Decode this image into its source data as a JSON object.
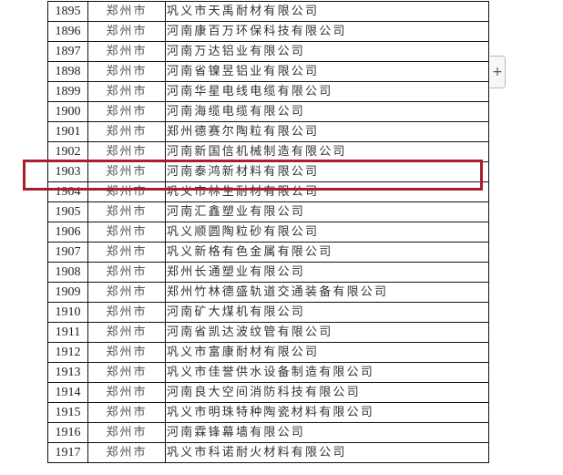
{
  "table": {
    "rows": [
      {
        "no": "1895",
        "city": "郑州市",
        "company": "巩义市天禹耐材有限公司"
      },
      {
        "no": "1896",
        "city": "郑州市",
        "company": "河南康百万环保科技有限公司"
      },
      {
        "no": "1897",
        "city": "郑州市",
        "company": "河南万达铝业有限公司"
      },
      {
        "no": "1898",
        "city": "郑州市",
        "company": "河南省镍昱铝业有限公司"
      },
      {
        "no": "1899",
        "city": "郑州市",
        "company": "河南华星电线电缆有限公司"
      },
      {
        "no": "1900",
        "city": "郑州市",
        "company": "河南海缆电缆有限公司"
      },
      {
        "no": "1901",
        "city": "郑州市",
        "company": "郑州德赛尔陶粒有限公司"
      },
      {
        "no": "1902",
        "city": "郑州市",
        "company": "河南新国信机械制造有限公司"
      },
      {
        "no": "1903",
        "city": "郑州市",
        "company": "河南泰鸿新材料有限公司"
      },
      {
        "no": "1904",
        "city": "郑州市",
        "company": "巩义市林生耐材有限公司"
      },
      {
        "no": "1905",
        "city": "郑州市",
        "company": "河南汇鑫塑业有限公司"
      },
      {
        "no": "1906",
        "city": "郑州市",
        "company": "巩义顺圆陶粒砂有限公司"
      },
      {
        "no": "1907",
        "city": "郑州市",
        "company": "巩义新格有色金属有限公司"
      },
      {
        "no": "1908",
        "city": "郑州市",
        "company": "郑州长通塑业有限公司"
      },
      {
        "no": "1909",
        "city": "郑州市",
        "company": "郑州竹林德盛轨道交通装备有限公司"
      },
      {
        "no": "1910",
        "city": "郑州市",
        "company": "河南矿大煤机有限公司"
      },
      {
        "no": "1911",
        "city": "郑州市",
        "company": "河南省凯达波纹管有限公司"
      },
      {
        "no": "1912",
        "city": "郑州市",
        "company": "巩义市富康耐材有限公司"
      },
      {
        "no": "1913",
        "city": "郑州市",
        "company": "巩义市佳誉供水设备制造有限公司"
      },
      {
        "no": "1914",
        "city": "郑州市",
        "company": "河南良大空间消防科技有限公司"
      },
      {
        "no": "1915",
        "city": "郑州市",
        "company": "巩义市明珠特种陶瓷材料有限公司"
      },
      {
        "no": "1916",
        "city": "郑州市",
        "company": "河南霖锋幕墙有限公司"
      },
      {
        "no": "1917",
        "city": "郑州市",
        "company": "巩义市科诺耐火材料有限公司"
      }
    ],
    "highlighted_row": "1903"
  },
  "colors": {
    "highlight": "#a81e2c"
  },
  "expand_button": {
    "icon": "plus-icon",
    "label": "+"
  }
}
